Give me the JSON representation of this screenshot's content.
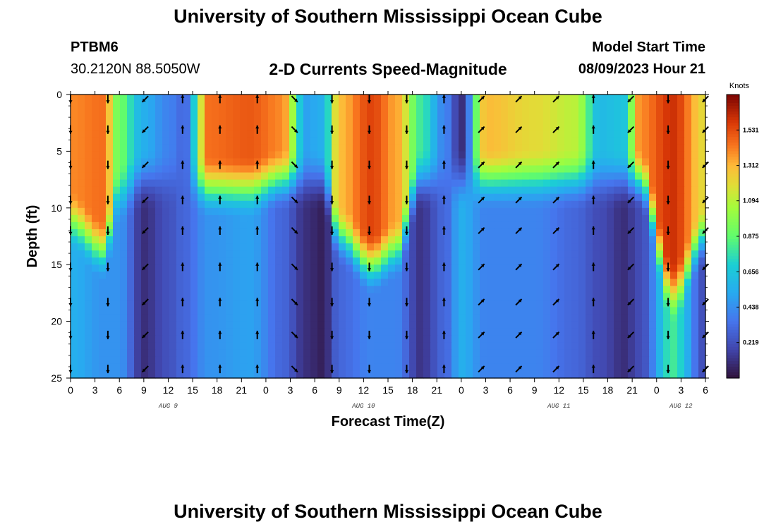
{
  "header": {
    "title": "University of Southern Mississippi Ocean Cube",
    "station_id": "PTBM6",
    "station_coords": "30.2120N  88.5050W",
    "plot_title": "2-D Currents Speed-Magnitude",
    "model_label": "Model Start Time",
    "model_time": "08/09/2023 Hour 21"
  },
  "footer": {
    "title": "University of Southern Mississippi Ocean Cube"
  },
  "chart_data": {
    "type": "heatmap",
    "title": "2-D Currents Speed-Magnitude",
    "xlabel": "Forecast Time(Z)",
    "ylabel": "Depth (ft)",
    "x_tick_labels": [
      "0",
      "3",
      "6",
      "9",
      "12",
      "15",
      "18",
      "21",
      "0",
      "3",
      "6",
      "9",
      "12",
      "15",
      "18",
      "21",
      "0",
      "3",
      "6",
      "9",
      "12",
      "15",
      "18",
      "21",
      "0",
      "3",
      "6"
    ],
    "y_ticks": [
      0,
      5,
      10,
      15,
      20,
      25
    ],
    "ylim": [
      0,
      25
    ],
    "x_hours_range": [
      0,
      78
    ],
    "date_labels": [
      {
        "text": "AUG 9",
        "hour": 12
      },
      {
        "text": "AUG 10",
        "hour": 36
      },
      {
        "text": "AUG 11",
        "hour": 60
      },
      {
        "text": "AUG 12",
        "hour": 75
      }
    ],
    "colorbar": {
      "unit": "Knots",
      "min": 0,
      "max": 1.75,
      "ticks": [
        "1.531",
        "1.312",
        "1.094",
        "0.875",
        "0.656",
        "0.438",
        "0.219"
      ]
    },
    "speed_profiles": [
      {
        "hour": 0,
        "surface": 1.4,
        "bottom": 0.55,
        "split": 0.45,
        "direction": "down"
      },
      {
        "hour": 4,
        "surface": 1.45,
        "bottom": 0.45,
        "split": 0.55,
        "direction": "down"
      },
      {
        "hour": 6,
        "surface": 0.9,
        "bottom": 0.45,
        "split": 0.35,
        "direction": "down"
      },
      {
        "hour": 9,
        "surface": 0.55,
        "bottom": 0.1,
        "split": 0.3,
        "direction": "southwest"
      },
      {
        "hour": 12,
        "surface": 0.4,
        "bottom": 0.22,
        "split": 0.3,
        "direction": "north"
      },
      {
        "hour": 14,
        "surface": 0.3,
        "bottom": 0.3,
        "split": 0.3,
        "direction": "north"
      },
      {
        "hour": 17,
        "surface": 1.45,
        "bottom": 0.45,
        "split": 0.33,
        "direction": "north"
      },
      {
        "hour": 22,
        "surface": 1.5,
        "bottom": 0.5,
        "split": 0.33,
        "direction": "north"
      },
      {
        "hour": 26,
        "surface": 1.4,
        "bottom": 0.3,
        "split": 0.3,
        "direction": "north"
      },
      {
        "hour": 29,
        "surface": 0.5,
        "bottom": 0.1,
        "split": 0.3,
        "direction": "southeast"
      },
      {
        "hour": 31,
        "surface": 0.55,
        "bottom": 0.05,
        "split": 0.3,
        "direction": "southeast"
      },
      {
        "hour": 33,
        "surface": 1.3,
        "bottom": 0.3,
        "split": 0.5,
        "direction": "down"
      },
      {
        "hour": 37,
        "surface": 1.55,
        "bottom": 0.4,
        "split": 0.6,
        "direction": "down"
      },
      {
        "hour": 40,
        "surface": 1.35,
        "bottom": 0.4,
        "split": 0.55,
        "direction": "down"
      },
      {
        "hour": 43,
        "surface": 0.8,
        "bottom": 0.12,
        "split": 0.3,
        "direction": "southwest"
      },
      {
        "hour": 46,
        "surface": 0.4,
        "bottom": 0.3,
        "split": 0.3,
        "direction": "north"
      },
      {
        "hour": 48,
        "surface": 0.1,
        "bottom": 0.55,
        "split": 0.3,
        "direction": "north"
      },
      {
        "hour": 51,
        "surface": 1.3,
        "bottom": 0.4,
        "split": 0.3,
        "direction": "northeast"
      },
      {
        "hour": 57,
        "surface": 1.2,
        "bottom": 0.4,
        "split": 0.3,
        "direction": "northeast"
      },
      {
        "hour": 62,
        "surface": 1.1,
        "bottom": 0.3,
        "split": 0.3,
        "direction": "northeast"
      },
      {
        "hour": 65,
        "surface": 0.6,
        "bottom": 0.2,
        "split": 0.3,
        "direction": "north"
      },
      {
        "hour": 68,
        "surface": 0.65,
        "bottom": 0.1,
        "split": 0.3,
        "direction": "southwest"
      },
      {
        "hour": 70,
        "surface": 1.4,
        "bottom": 0.2,
        "split": 0.3,
        "direction": "down"
      },
      {
        "hour": 74,
        "surface": 1.6,
        "bottom": 0.8,
        "split": 0.7,
        "direction": "down"
      },
      {
        "hour": 78,
        "surface": 1.2,
        "bottom": 0.2,
        "split": 0.5,
        "direction": "southwest"
      }
    ]
  }
}
